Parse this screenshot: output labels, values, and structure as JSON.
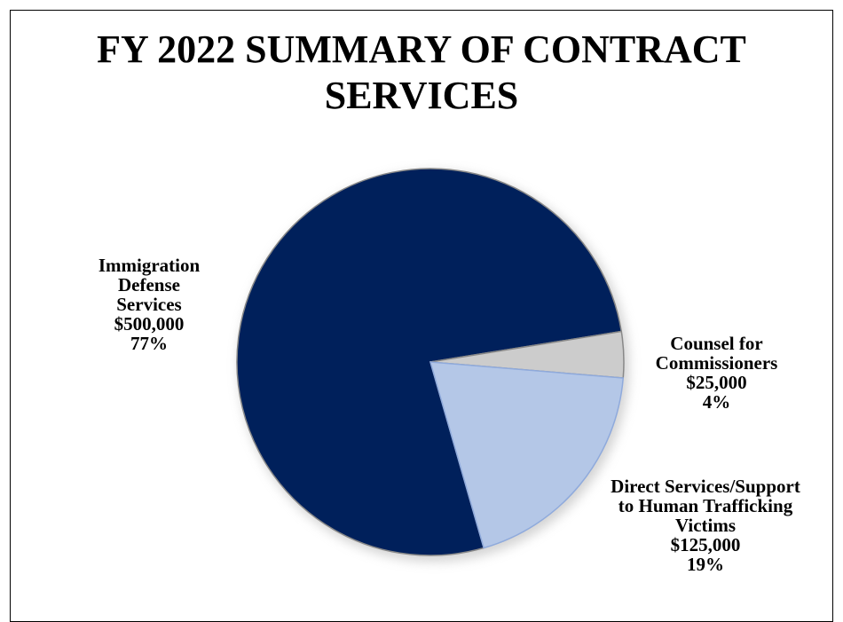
{
  "chart_data": {
    "type": "pie",
    "title": "FY 2022 SUMMARY OF CONTRACT SERVICES",
    "slices": [
      {
        "label": "Immigration Defense Services",
        "value": 500000,
        "value_label": "$500,000",
        "percent_label": "77%",
        "color": "#00205b"
      },
      {
        "label": "Counsel for Commissioners",
        "value": 25000,
        "value_label": "$25,000",
        "percent_label": "4%",
        "color": "#cccccc"
      },
      {
        "label": "Direct Services/Support to Human Trafficking Victims",
        "value": 125000,
        "value_label": "$125,000",
        "percent_label": "19%",
        "color": "#b4c7e7"
      }
    ]
  },
  "labels": {
    "immigration": {
      "lines": [
        "Immigration",
        "Defense",
        "Services"
      ],
      "value": "$500,000",
      "percent": "77%"
    },
    "counsel": {
      "lines": [
        "Counsel for",
        "Commissioners"
      ],
      "value": "$25,000",
      "percent": "4%"
    },
    "direct": {
      "lines": [
        "Direct Services/Support",
        "to Human Trafficking",
        "Victims"
      ],
      "value": "$125,000",
      "percent": "19%"
    }
  }
}
